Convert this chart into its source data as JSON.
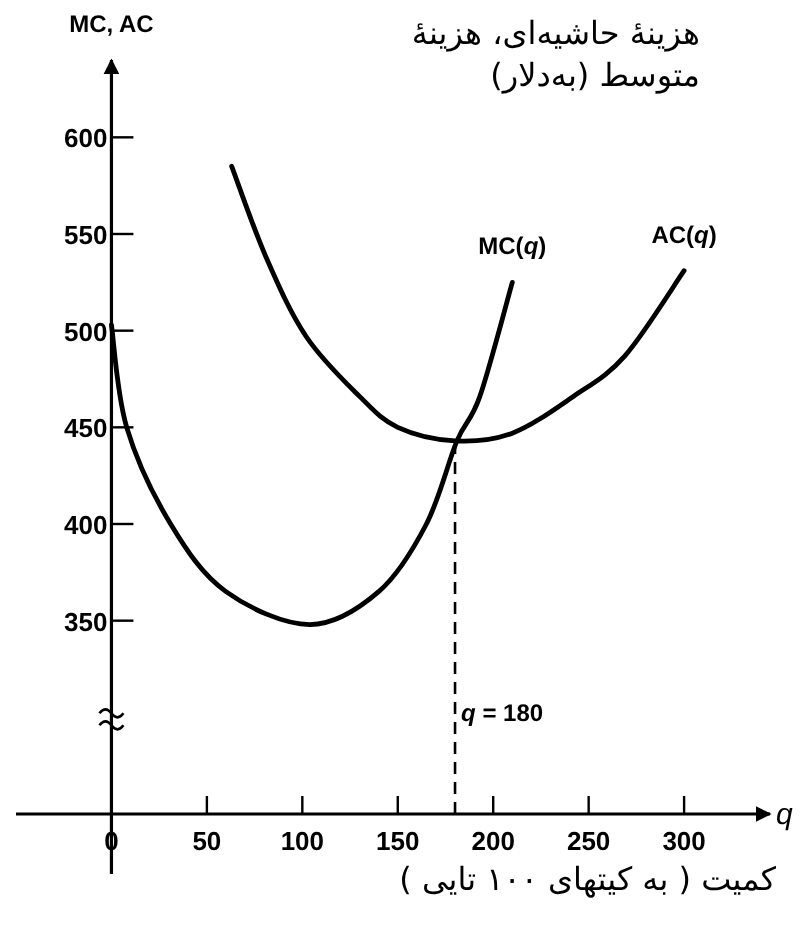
{
  "chart_data": {
    "type": "line",
    "title": "هزینهٔ حاشیه‌ای، هزینهٔ متوسط (به‌دلار)",
    "ylabel": "MC, AC",
    "xlabel": "*q*",
    "annotations": [
      "کمیت ( به کیتهای ۱۰۰ تایی )"
    ],
    "series": [
      {
        "name": "MC(*q*)",
        "color": "#000000",
        "x": [
          0,
          8,
          31,
          60,
          104,
          140,
          165,
          181,
          193,
          210
        ],
        "values": [
          503,
          450,
          400,
          365,
          348,
          365,
          400,
          443,
          466,
          525
        ]
      },
      {
        "name": "AC(*q*)",
        "color": "#000000",
        "x": [
          63,
          81,
          102,
          130,
          150,
          180,
          210,
          242,
          269,
          300
        ],
        "values": [
          585,
          538,
          497,
          466,
          450,
          443,
          447,
          466,
          487,
          531
        ]
      }
    ],
    "xlim": [
      -50,
      345
    ],
    "ylim": [
      250,
      640
    ],
    "xticks": [
      0,
      50,
      100,
      150,
      200,
      250,
      300
    ],
    "yticks": [
      350,
      400,
      450,
      500,
      550,
      600
    ],
    "ref_lines": [
      {
        "axis": "x",
        "value": 180,
        "label": "*q* = 180",
        "line_style": "dashed",
        "color": "#000000"
      }
    ],
    "grid": false
  }
}
